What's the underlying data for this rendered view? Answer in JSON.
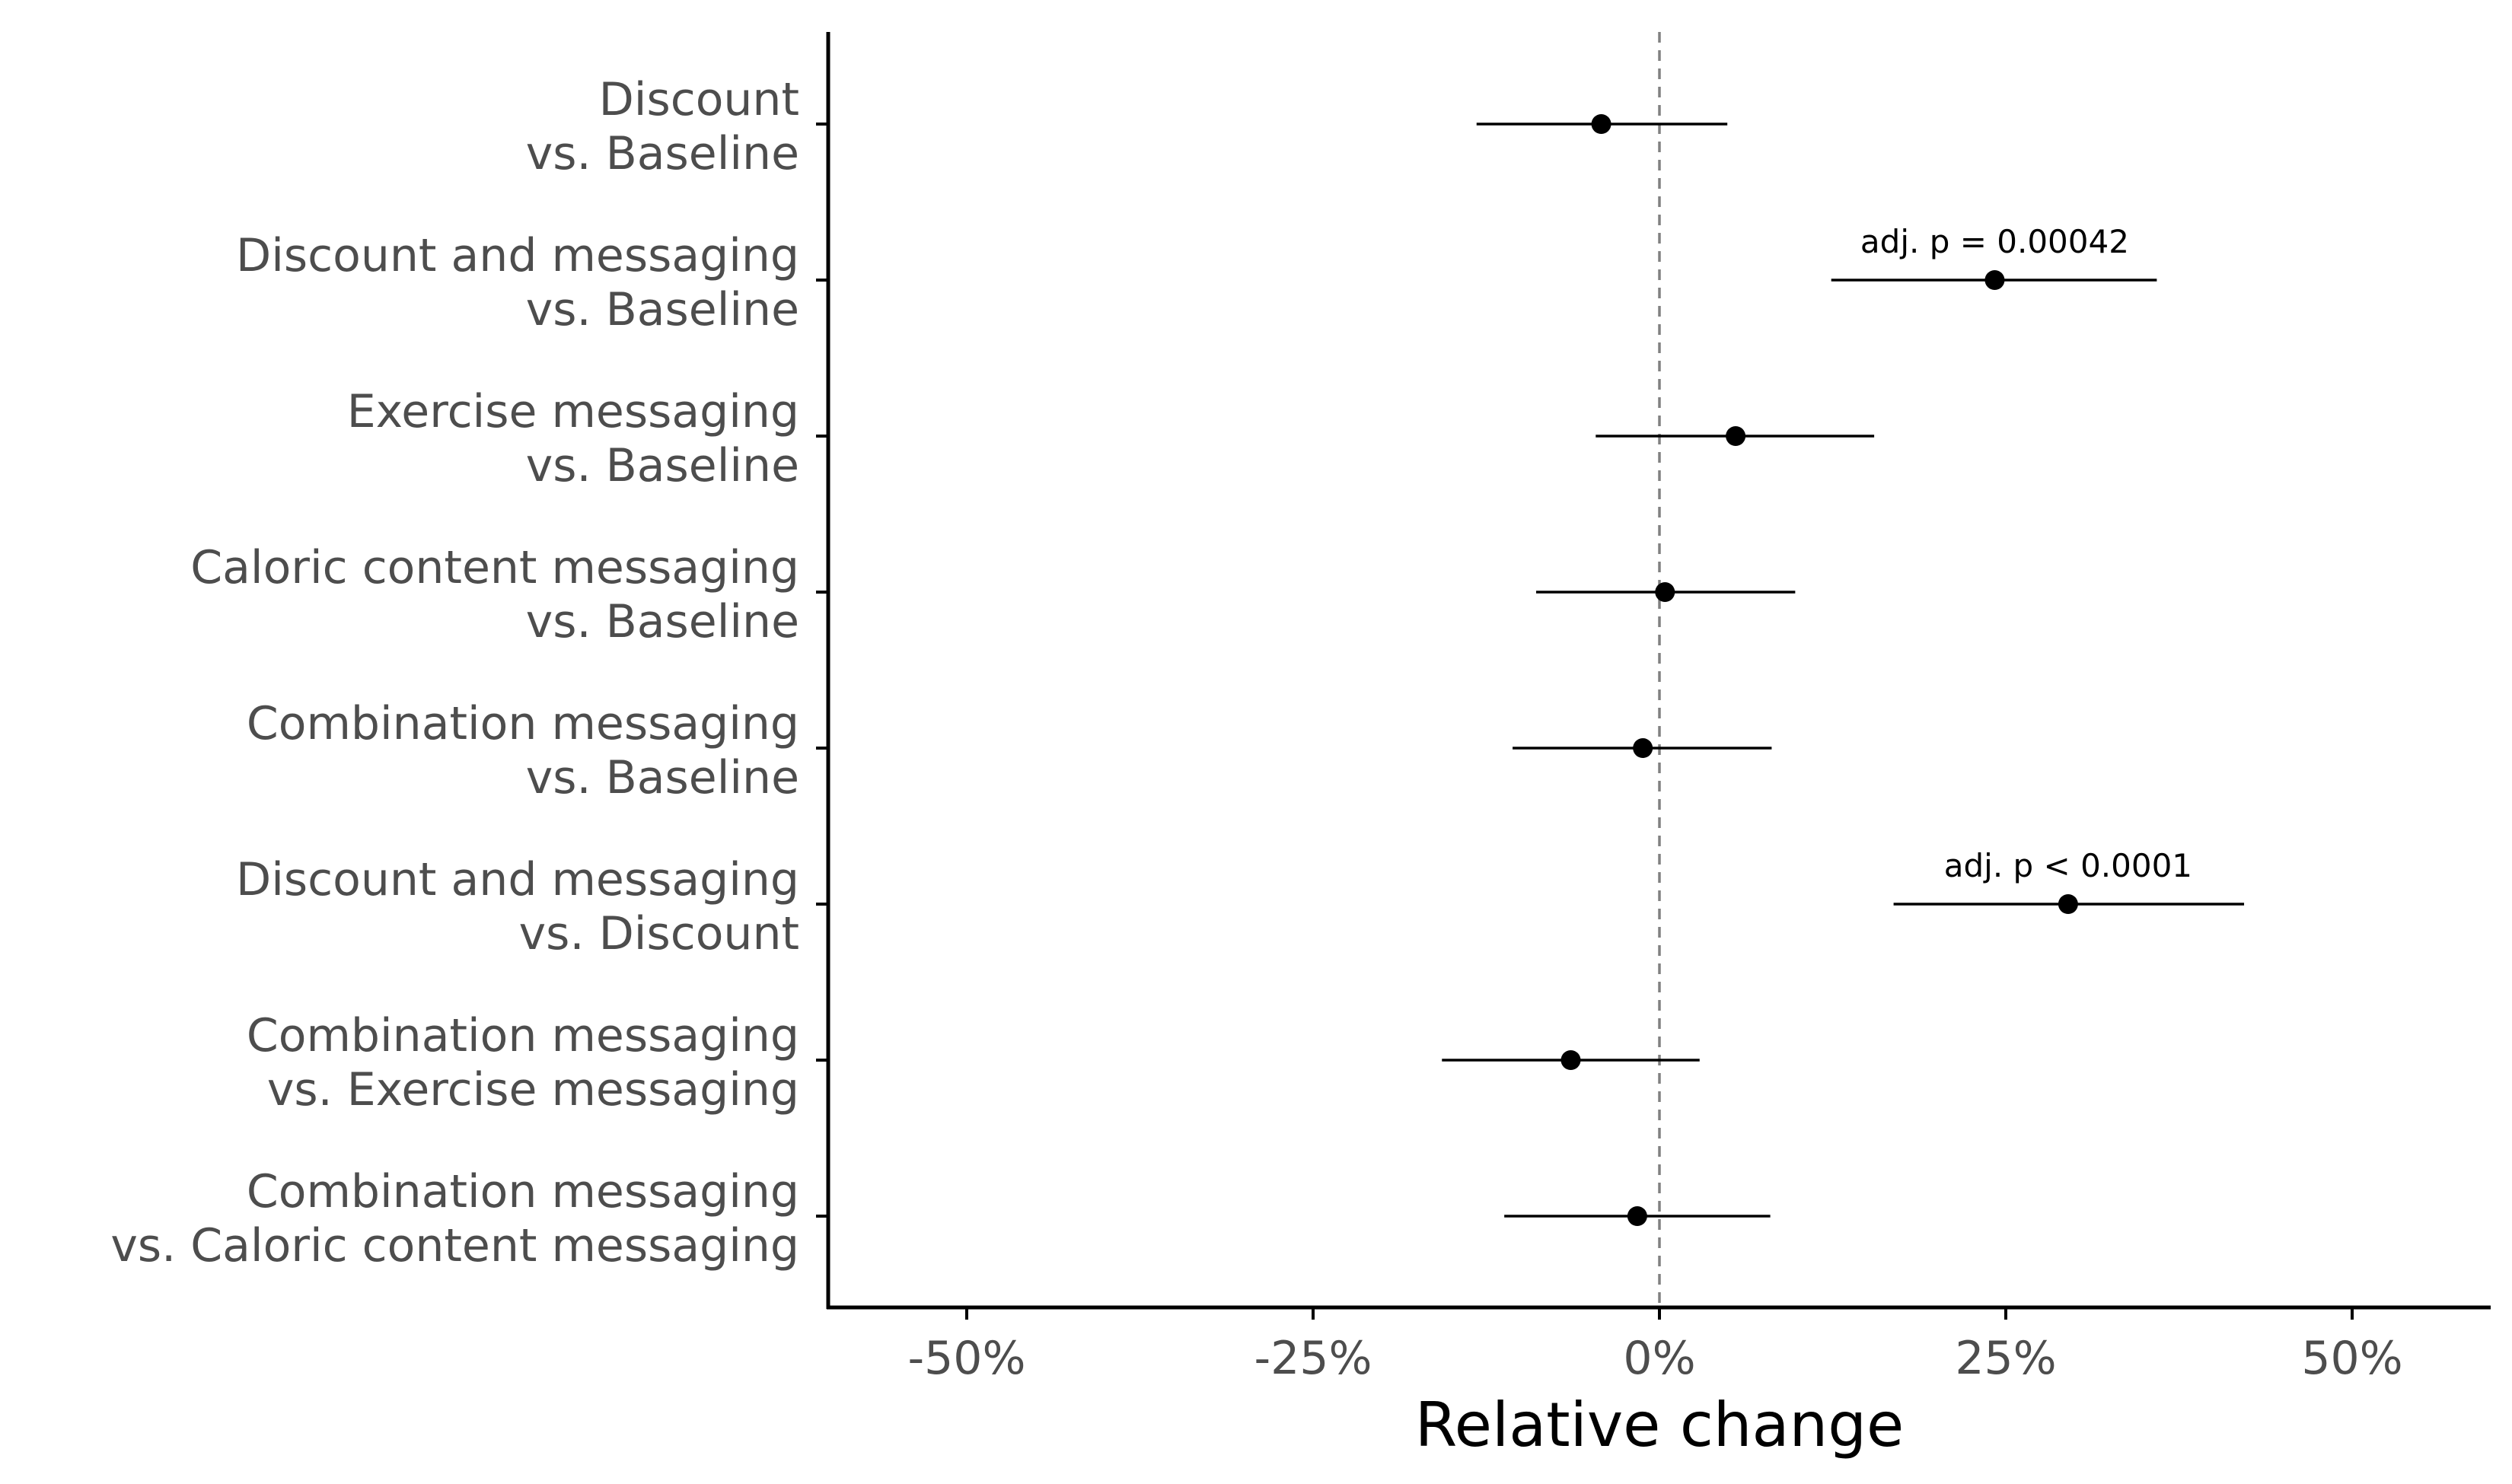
{
  "chart_data": {
    "type": "forest",
    "orientation": "horizontal",
    "xlabel": "Relative change",
    "ylabel": "",
    "xlim": [
      -60,
      60
    ],
    "x_ticks": [
      -50,
      -25,
      0,
      25,
      50
    ],
    "x_tick_labels": [
      "-50%",
      "-25%",
      "0%",
      "25%",
      "50%"
    ],
    "reference_line": 0,
    "grid": false,
    "rows": [
      {
        "label": [
          "Discount",
          "vs. Baseline"
        ],
        "estimate": -4.2,
        "ci_low": -13.2,
        "ci_high": 4.9,
        "annotation": ""
      },
      {
        "label": [
          "Discount and messaging",
          "vs. Baseline"
        ],
        "estimate": 24.2,
        "ci_low": 12.4,
        "ci_high": 35.9,
        "annotation": "adj. p = 0.00042"
      },
      {
        "label": [
          "Exercise messaging",
          "vs. Baseline"
        ],
        "estimate": 5.5,
        "ci_low": -4.6,
        "ci_high": 15.5,
        "annotation": ""
      },
      {
        "label": [
          "Caloric content messaging",
          "vs. Baseline"
        ],
        "estimate": 0.4,
        "ci_low": -8.9,
        "ci_high": 9.8,
        "annotation": ""
      },
      {
        "label": [
          "Combination messaging",
          "vs. Baseline"
        ],
        "estimate": -1.2,
        "ci_low": -10.6,
        "ci_high": 8.1,
        "annotation": ""
      },
      {
        "label": [
          "Discount and messaging",
          "vs. Discount"
        ],
        "estimate": 29.5,
        "ci_low": 16.9,
        "ci_high": 42.2,
        "annotation": "adj. p < 0.0001"
      },
      {
        "label": [
          "Combination messaging",
          "vs. Exercise messaging"
        ],
        "estimate": -6.4,
        "ci_low": -15.7,
        "ci_high": 2.9,
        "annotation": ""
      },
      {
        "label": [
          "Combination messaging",
          "vs. Caloric content messaging"
        ],
        "estimate": -1.6,
        "ci_low": -11.2,
        "ci_high": 8.0,
        "annotation": ""
      }
    ],
    "colors": {
      "point": "#000000",
      "errorbar": "#000000",
      "reference_line": "#808080",
      "axis": "#000000",
      "label_text": "#4d4d4d"
    }
  }
}
